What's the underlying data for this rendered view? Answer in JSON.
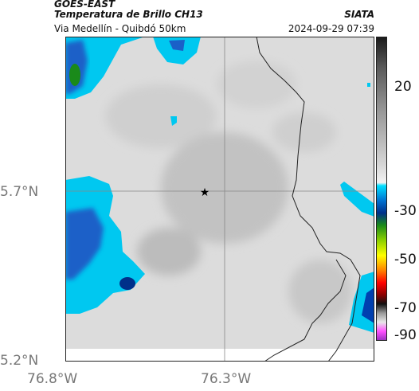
{
  "header": {
    "satellite": "GOES-EAST",
    "product": "Temperatura de Brillo CH13",
    "region": "Via Medellín - Quibdó 50km",
    "org": "SIATA",
    "timestamp": "2024-09-29 07:39"
  },
  "axes": {
    "lat_ticks": [
      "5.7°N",
      "5.2°N"
    ],
    "lon_ticks": [
      "76.8°W",
      "76.3°W"
    ]
  },
  "colorbar": {
    "ticks": [
      "20",
      "-30",
      "-50",
      "-70",
      "-90"
    ],
    "stops": [
      "#1a1a1a",
      "#5a5a5a",
      "#9a9a9a",
      "#d6d6d6",
      "#f2f2f2",
      "#00e0ff",
      "#0070d0",
      "#00308a",
      "#1a8a1a",
      "#8bd000",
      "#ffff00",
      "#ff8000",
      "#ff0000",
      "#8a0000",
      "#111111",
      "#9a9a9a",
      "#e8e8e8",
      "#ff50ff",
      "#9a30c0"
    ]
  },
  "map": {
    "marker": "★",
    "colors": {
      "cloud_cold": "#00c8f0",
      "cloud_core": "#1040c0",
      "background": "#dddddd"
    }
  }
}
